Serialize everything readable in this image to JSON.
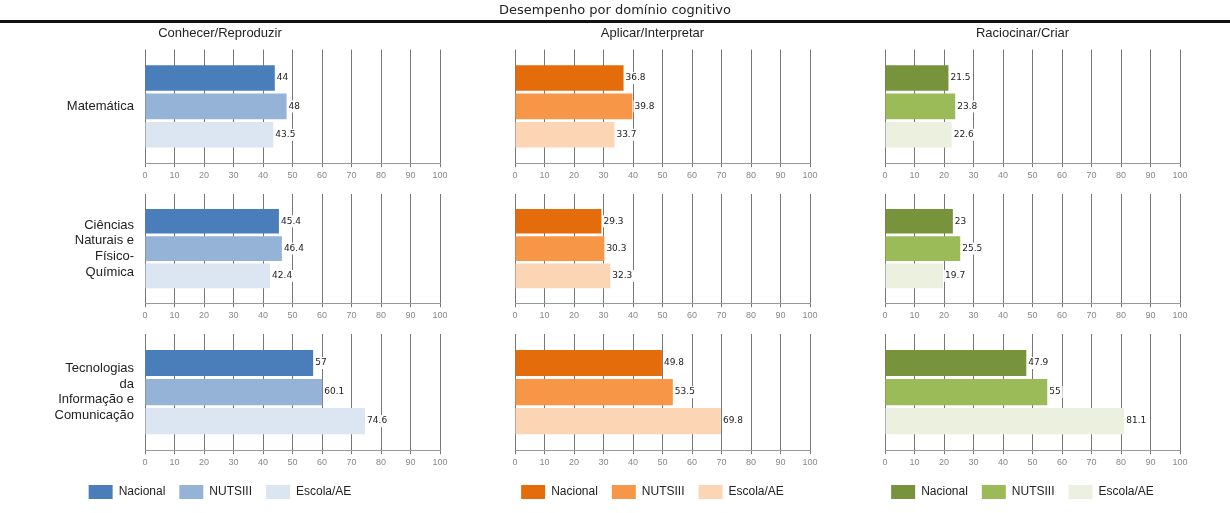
{
  "chart_data": [
    {
      "type": "other",
      "title": "Desempenho por domínio cognitivo"
    },
    {
      "type": "bar",
      "orientation": "horizontal",
      "title": "Conhecer/Reproduzir",
      "categories": [
        "Matemática"
      ],
      "series": [
        {
          "color": "#4a7ebb",
          "values": [
            44
          ]
        },
        {
          "color": "#95b3d7",
          "values": [
            48
          ]
        },
        {
          "color": "#dce6f2",
          "values": [
            43.5
          ]
        }
      ],
      "xlim": [
        0,
        100
      ],
      "xticks": [
        0,
        10,
        20,
        30,
        40,
        50,
        60,
        70,
        80,
        90,
        100
      ],
      "grid": "x",
      "data_labels": true,
      "legend": false
    },
    {
      "type": "bar",
      "orientation": "horizontal",
      "title": "Aplicar/Interpretar",
      "categories": [
        null
      ],
      "series": [
        {
          "color": "#e46c0a",
          "values": [
            36.8
          ]
        },
        {
          "color": "#f79646",
          "values": [
            39.8
          ]
        },
        {
          "color": "#fcd5b5",
          "values": [
            33.7
          ]
        }
      ],
      "xlim": [
        0,
        100
      ],
      "xticks": [
        0,
        10,
        20,
        30,
        40,
        50,
        60,
        70,
        80,
        90,
        100
      ],
      "grid": "x",
      "data_labels": true,
      "legend": false
    },
    {
      "type": "bar",
      "orientation": "horizontal",
      "title": "Raciocinar/Criar",
      "categories": [
        null
      ],
      "series": [
        {
          "color": "#77933c",
          "values": [
            21.5
          ]
        },
        {
          "color": "#9bbb59",
          "values": [
            23.8
          ]
        },
        {
          "color": "#ebf1de",
          "values": [
            22.6
          ]
        }
      ],
      "xlim": [
        0,
        100
      ],
      "xticks": [
        0,
        10,
        20,
        30,
        40,
        50,
        60,
        70,
        80,
        90,
        100
      ],
      "grid": "x",
      "data_labels": true,
      "legend": false
    },
    {
      "type": "bar",
      "orientation": "horizontal",
      "categories": [
        "Ciências Naturais e Físico-Química"
      ],
      "series": [
        {
          "color": "#4a7ebb",
          "values": [
            45.4
          ]
        },
        {
          "color": "#95b3d7",
          "values": [
            46.4
          ]
        },
        {
          "color": "#dce6f2",
          "values": [
            42.4
          ]
        }
      ],
      "xlim": [
        0,
        100
      ],
      "xticks": [
        0,
        10,
        20,
        30,
        40,
        50,
        60,
        70,
        80,
        90,
        100
      ],
      "grid": "x",
      "data_labels": true,
      "legend": false
    },
    {
      "type": "bar",
      "orientation": "horizontal",
      "categories": [
        null
      ],
      "series": [
        {
          "color": "#e46c0a",
          "values": [
            29.3
          ]
        },
        {
          "color": "#f79646",
          "values": [
            30.3
          ]
        },
        {
          "color": "#fcd5b5",
          "values": [
            32.3
          ]
        }
      ],
      "xlim": [
        0,
        100
      ],
      "xticks": [
        0,
        10,
        20,
        30,
        40,
        50,
        60,
        70,
        80,
        90,
        100
      ],
      "grid": "x",
      "data_labels": true,
      "legend": false
    },
    {
      "type": "bar",
      "orientation": "horizontal",
      "categories": [
        null
      ],
      "series": [
        {
          "color": "#77933c",
          "values": [
            23
          ]
        },
        {
          "color": "#9bbb59",
          "values": [
            25.5
          ]
        },
        {
          "color": "#ebf1de",
          "values": [
            19.7
          ]
        }
      ],
      "xlim": [
        0,
        100
      ],
      "xticks": [
        0,
        10,
        20,
        30,
        40,
        50,
        60,
        70,
        80,
        90,
        100
      ],
      "grid": "x",
      "data_labels": true,
      "legend": false
    },
    {
      "type": "bar",
      "orientation": "horizontal",
      "categories": [
        "Tecnologias da Informação e Comunicação"
      ],
      "series": [
        {
          "name": "Nacional",
          "color": "#4a7ebb",
          "values": [
            57
          ]
        },
        {
          "name": "NUTSIII",
          "color": "#95b3d7",
          "values": [
            60.1
          ]
        },
        {
          "name": "Escola/AE",
          "color": "#dce6f2",
          "values": [
            74.6
          ]
        }
      ],
      "xlim": [
        0,
        100
      ],
      "xticks": [
        0,
        10,
        20,
        30,
        40,
        50,
        60,
        70,
        80,
        90,
        100
      ],
      "grid": "x",
      "data_labels": true,
      "legend": "bottom"
    },
    {
      "type": "bar",
      "orientation": "horizontal",
      "categories": [
        null
      ],
      "series": [
        {
          "name": "Nacional",
          "color": "#e46c0a",
          "values": [
            49.8
          ]
        },
        {
          "name": "NUTSIII",
          "color": "#f79646",
          "values": [
            53.5
          ]
        },
        {
          "name": "Escola/AE",
          "color": "#fcd5b5",
          "values": [
            69.8
          ]
        }
      ],
      "xlim": [
        0,
        100
      ],
      "xticks": [
        0,
        10,
        20,
        30,
        40,
        50,
        60,
        70,
        80,
        90,
        100
      ],
      "grid": "x",
      "data_labels": true,
      "legend": "bottom"
    },
    {
      "type": "bar",
      "orientation": "horizontal",
      "categories": [
        null
      ],
      "series": [
        {
          "name": "Nacional",
          "color": "#77933c",
          "values": [
            47.9
          ]
        },
        {
          "name": "NUTSIII",
          "color": "#9bbb59",
          "values": [
            55
          ]
        },
        {
          "name": "Escola/AE",
          "color": "#ebf1de",
          "values": [
            81.1
          ]
        }
      ],
      "xlim": [
        0,
        100
      ],
      "xticks": [
        0,
        10,
        20,
        30,
        40,
        50,
        60,
        70,
        80,
        90,
        100
      ],
      "grid": "x",
      "data_labels": true,
      "legend": "bottom"
    }
  ]
}
